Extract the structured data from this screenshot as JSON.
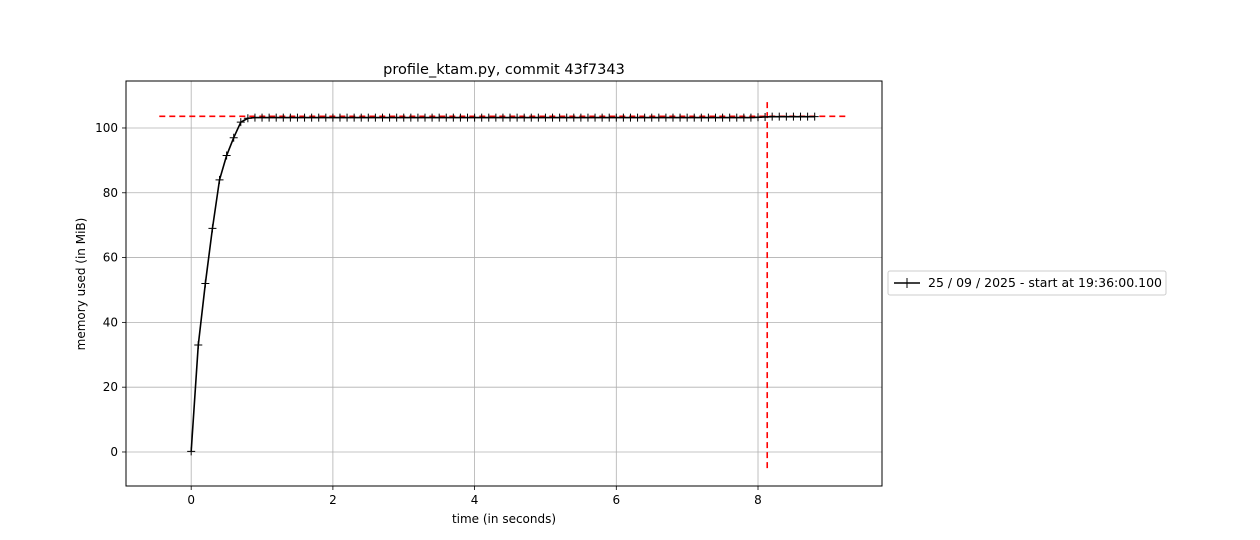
{
  "chart_data": {
    "type": "line",
    "title": "profile_ktam.py, commit 43f7343",
    "xlabel": "time (in seconds)",
    "ylabel": "memory used (in MiB)",
    "xlim": [
      -0.92,
      9.75
    ],
    "ylim": [
      -10.5,
      114.5
    ],
    "x_ticks": [
      0,
      2,
      4,
      6,
      8
    ],
    "y_ticks": [
      0,
      20,
      40,
      60,
      80,
      100
    ],
    "grid": true,
    "legend_position": "outside-right",
    "series": [
      {
        "name": "25 / 09 / 2025 - start at 19:36:00.100",
        "color": "#000000",
        "marker": "+",
        "x": [
          0.0,
          0.1,
          0.2,
          0.3,
          0.4,
          0.5,
          0.6,
          0.7,
          0.8,
          0.9,
          1.0,
          1.1,
          1.2,
          1.3,
          1.4,
          1.5,
          1.6,
          1.7,
          1.8,
          1.9,
          2.0,
          2.1,
          2.2,
          2.3,
          2.4,
          2.5,
          2.6,
          2.7,
          2.8,
          2.9,
          3.0,
          3.1,
          3.2,
          3.3,
          3.4,
          3.5,
          3.6,
          3.7,
          3.8,
          3.9,
          4.0,
          4.1,
          4.2,
          4.3,
          4.4,
          4.5,
          4.6,
          4.7,
          4.8,
          4.9,
          5.0,
          5.1,
          5.2,
          5.3,
          5.4,
          5.5,
          5.6,
          5.7,
          5.8,
          5.9,
          6.0,
          6.1,
          6.2,
          6.3,
          6.4,
          6.5,
          6.6,
          6.7,
          6.8,
          6.9,
          7.0,
          7.1,
          7.2,
          7.3,
          7.4,
          7.5,
          7.6,
          7.7,
          7.8,
          7.9,
          8.0,
          8.1,
          8.2,
          8.3,
          8.4,
          8.5,
          8.6,
          8.7,
          8.8
        ],
        "y": [
          0.2,
          33,
          52,
          69,
          84,
          91.5,
          97,
          101.8,
          103,
          103.2,
          103.2,
          103.2,
          103.2,
          103.2,
          103.2,
          103.2,
          103.2,
          103.2,
          103.2,
          103.2,
          103.2,
          103.2,
          103.2,
          103.2,
          103.2,
          103.2,
          103.2,
          103.2,
          103.2,
          103.2,
          103.2,
          103.2,
          103.2,
          103.2,
          103.2,
          103.2,
          103.2,
          103.2,
          103.2,
          103.2,
          103.2,
          103.2,
          103.2,
          103.2,
          103.2,
          103.2,
          103.2,
          103.2,
          103.2,
          103.2,
          103.2,
          103.2,
          103.2,
          103.2,
          103.2,
          103.2,
          103.2,
          103.2,
          103.2,
          103.2,
          103.2,
          103.2,
          103.2,
          103.2,
          103.2,
          103.2,
          103.2,
          103.2,
          103.2,
          103.2,
          103.2,
          103.2,
          103.2,
          103.2,
          103.2,
          103.2,
          103.2,
          103.2,
          103.2,
          103.2,
          103.3,
          103.4,
          103.5,
          103.5,
          103.5,
          103.5,
          103.5,
          103.5,
          103.5
        ]
      }
    ],
    "reference_lines": [
      {
        "orientation": "horizontal",
        "y": 103.6,
        "x_range": [
          -0.45,
          9.25
        ],
        "color": "#ff0000",
        "style": "dashed"
      },
      {
        "orientation": "vertical",
        "x": 8.13,
        "y_range": [
          -5,
          109
        ],
        "color": "#ff0000",
        "style": "dashed"
      }
    ]
  }
}
